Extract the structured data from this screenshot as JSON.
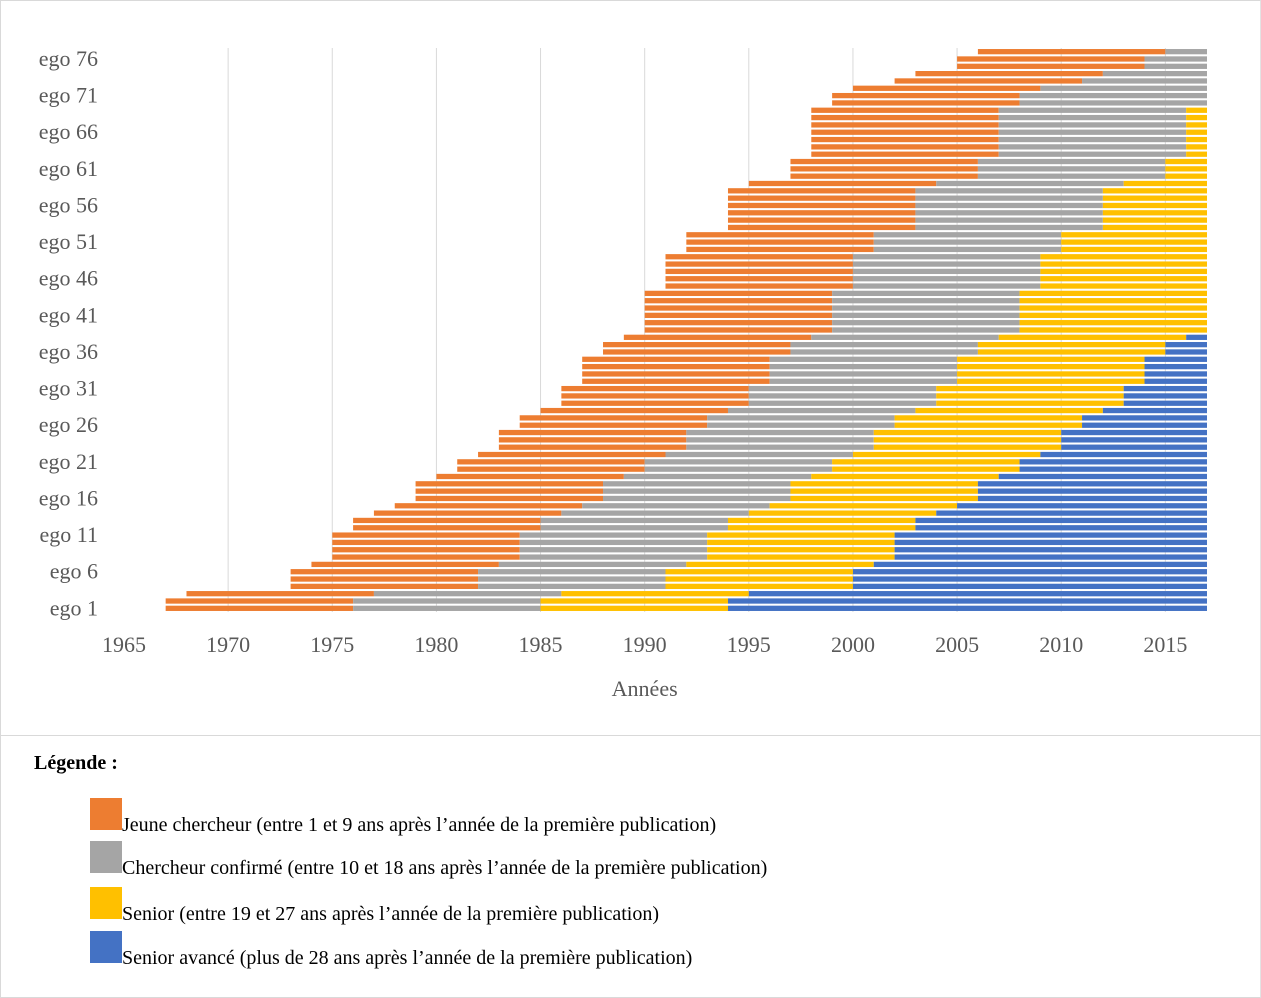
{
  "chart_data": {
    "type": "bar",
    "orientation": "horizontal",
    "stacked": true,
    "xlabel": "Années",
    "xlim": [
      1965,
      2017
    ],
    "x_ticks": [
      1965,
      1970,
      1975,
      1980,
      1985,
      1990,
      1995,
      2000,
      2005,
      2010,
      2015
    ],
    "grid": "vertical",
    "y_tick_labels": [
      "ego 1",
      "ego 6",
      "ego 11",
      "ego 16",
      "ego 21",
      "ego 26",
      "ego 31",
      "ego 36",
      "ego 41",
      "ego 46",
      "ego 51",
      "ego 56",
      "ego 61",
      "ego 66",
      "ego 71",
      "ego 76"
    ],
    "colors": {
      "jeune": "#ED7D31",
      "confirme": "#A5A5A5",
      "senior": "#FFC000",
      "avance": "#4472C4"
    },
    "rows": [
      {
        "start": 1967,
        "end": 2017
      },
      {
        "start": 1967,
        "end": 2017
      },
      {
        "start": 1968,
        "end": 2017
      },
      {
        "start": 1973,
        "end": 2017
      },
      {
        "start": 1973,
        "end": 2017
      },
      {
        "start": 1973,
        "end": 2017
      },
      {
        "start": 1974,
        "end": 2017
      },
      {
        "start": 1975,
        "end": 2017
      },
      {
        "start": 1975,
        "end": 2017
      },
      {
        "start": 1975,
        "end": 2017
      },
      {
        "start": 1975,
        "end": 2017
      },
      {
        "start": 1976,
        "end": 2017
      },
      {
        "start": 1976,
        "end": 2017
      },
      {
        "start": 1977,
        "end": 2017
      },
      {
        "start": 1978,
        "end": 2017
      },
      {
        "start": 1979,
        "end": 2017
      },
      {
        "start": 1979,
        "end": 2017
      },
      {
        "start": 1979,
        "end": 2017
      },
      {
        "start": 1980,
        "end": 2017
      },
      {
        "start": 1981,
        "end": 2017
      },
      {
        "start": 1981,
        "end": 2017
      },
      {
        "start": 1982,
        "end": 2017
      },
      {
        "start": 1983,
        "end": 2017
      },
      {
        "start": 1983,
        "end": 2017
      },
      {
        "start": 1983,
        "end": 2017
      },
      {
        "start": 1984,
        "end": 2017
      },
      {
        "start": 1984,
        "end": 2017
      },
      {
        "start": 1985,
        "end": 2017
      },
      {
        "start": 1986,
        "end": 2017
      },
      {
        "start": 1986,
        "end": 2017
      },
      {
        "start": 1986,
        "end": 2017
      },
      {
        "start": 1987,
        "end": 2017
      },
      {
        "start": 1987,
        "end": 2017
      },
      {
        "start": 1987,
        "end": 2017
      },
      {
        "start": 1987,
        "end": 2017
      },
      {
        "start": 1988,
        "end": 2017
      },
      {
        "start": 1988,
        "end": 2017
      },
      {
        "start": 1989,
        "end": 2017
      },
      {
        "start": 1990,
        "end": 2017
      },
      {
        "start": 1990,
        "end": 2017
      },
      {
        "start": 1990,
        "end": 2017
      },
      {
        "start": 1990,
        "end": 2017
      },
      {
        "start": 1990,
        "end": 2017
      },
      {
        "start": 1990,
        "end": 2017
      },
      {
        "start": 1991,
        "end": 2017
      },
      {
        "start": 1991,
        "end": 2017
      },
      {
        "start": 1991,
        "end": 2017
      },
      {
        "start": 1991,
        "end": 2017
      },
      {
        "start": 1991,
        "end": 2017
      },
      {
        "start": 1992,
        "end": 2017
      },
      {
        "start": 1992,
        "end": 2017
      },
      {
        "start": 1992,
        "end": 2017
      },
      {
        "start": 1994,
        "end": 2017
      },
      {
        "start": 1994,
        "end": 2017
      },
      {
        "start": 1994,
        "end": 2017
      },
      {
        "start": 1994,
        "end": 2017
      },
      {
        "start": 1994,
        "end": 2017
      },
      {
        "start": 1994,
        "end": 2017
      },
      {
        "start": 1995,
        "end": 2017
      },
      {
        "start": 1997,
        "end": 2017
      },
      {
        "start": 1997,
        "end": 2017
      },
      {
        "start": 1997,
        "end": 2017
      },
      {
        "start": 1998,
        "end": 2017
      },
      {
        "start": 1998,
        "end": 2017
      },
      {
        "start": 1998,
        "end": 2017
      },
      {
        "start": 1998,
        "end": 2017
      },
      {
        "start": 1998,
        "end": 2017
      },
      {
        "start": 1998,
        "end": 2017
      },
      {
        "start": 1998,
        "end": 2017
      },
      {
        "start": 1999,
        "end": 2017
      },
      {
        "start": 1999,
        "end": 2017
      },
      {
        "start": 2000,
        "end": 2017
      },
      {
        "start": 2002,
        "end": 2017
      },
      {
        "start": 2003,
        "end": 2017
      },
      {
        "start": 2005,
        "end": 2017
      },
      {
        "start": 2005,
        "end": 2017
      },
      {
        "start": 2006,
        "end": 2017
      }
    ]
  },
  "legend": {
    "title": "Légende :",
    "items": [
      {
        "label": "Jeune chercheur (entre 1 et 9 ans après l’année de la première publication)",
        "color": "#ED7D31"
      },
      {
        "label": "Chercheur confirmé (entre 10 et 18 ans après l’année de la première publication)",
        "color": "#A5A5A5"
      },
      {
        "label": "Senior (entre 19 et 27 ans après l’année de la première publication)",
        "color": "#FFC000"
      },
      {
        "label": "Senior avancé (plus de 28 ans après l’année de la première publication)",
        "color": "#4472C4"
      }
    ]
  }
}
